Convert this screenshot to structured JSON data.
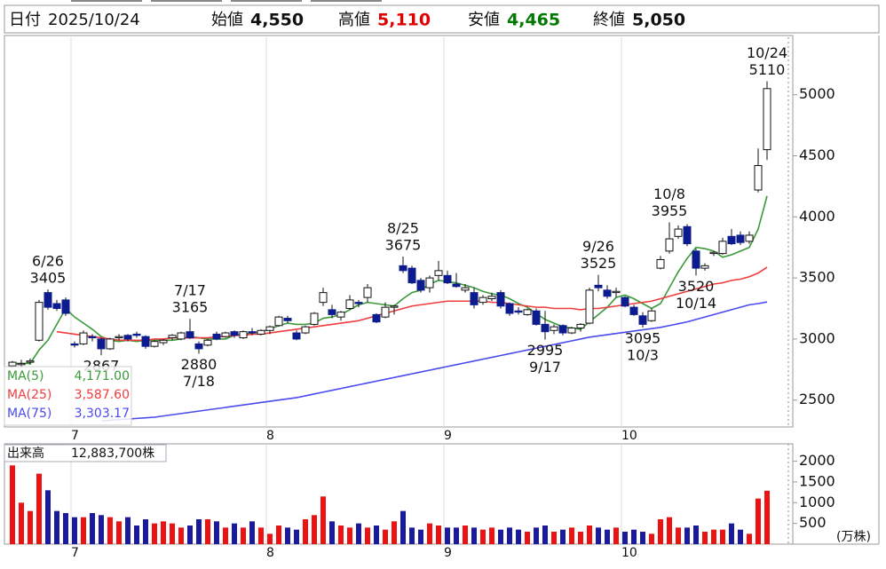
{
  "header": {
    "date_label": "日付",
    "date": "2025/10/24",
    "items": [
      {
        "label": "始値",
        "value": "4,550",
        "color": "#111111"
      },
      {
        "label": "高値",
        "value": "5,110",
        "color": "#e00000"
      },
      {
        "label": "安値",
        "value": "4,465",
        "color": "#007a00"
      },
      {
        "label": "終値",
        "value": "5,050",
        "color": "#111111"
      }
    ]
  },
  "chart_data": [
    {
      "type": "candlestick",
      "categories": [
        null,
        null,
        null,
        null,
        null,
        null,
        null,
        "7",
        null,
        null,
        null,
        null,
        null,
        null,
        null,
        null,
        null,
        null,
        null,
        null,
        null,
        null,
        null,
        null,
        null,
        null,
        null,
        null,
        null,
        "8",
        null,
        null,
        null,
        null,
        null,
        null,
        null,
        null,
        null,
        null,
        null,
        null,
        null,
        null,
        null,
        null,
        null,
        null,
        null,
        "9",
        null,
        null,
        null,
        null,
        null,
        null,
        null,
        null,
        null,
        null,
        null,
        null,
        null,
        null,
        null,
        null,
        null,
        null,
        null,
        "10",
        null,
        null,
        null,
        null,
        null,
        null,
        null,
        null,
        null,
        null,
        null,
        null,
        null,
        null,
        null,
        null
      ],
      "ohlc": [
        [
          2780,
          2820,
          2760,
          2810
        ],
        [
          2790,
          2830,
          2770,
          2800
        ],
        [
          2810,
          2840,
          2790,
          2820
        ],
        [
          2990,
          3320,
          2980,
          3300
        ],
        [
          3380,
          3405,
          3240,
          3260
        ],
        [
          3290,
          3320,
          3230,
          3250
        ],
        [
          3320,
          3340,
          3190,
          3210
        ],
        [
          2960,
          2980,
          2930,
          2950
        ],
        [
          2960,
          3070,
          2950,
          3050
        ],
        [
          3020,
          3040,
          2980,
          3010
        ],
        [
          3000,
          3010,
          2867,
          2920
        ],
        [
          2920,
          3010,
          2910,
          3000
        ],
        [
          3010,
          3040,
          2990,
          3020
        ],
        [
          3030,
          3040,
          2980,
          3000
        ],
        [
          3040,
          3060,
          3010,
          3030
        ],
        [
          3020,
          3030,
          2920,
          2940
        ],
        [
          2940,
          2990,
          2930,
          2980
        ],
        [
          2970,
          3000,
          2950,
          2990
        ],
        [
          3010,
          3040,
          2990,
          3030
        ],
        [
          3000,
          3060,
          2990,
          3050
        ],
        [
          3060,
          3165,
          3000,
          3010
        ],
        [
          2960,
          2980,
          2880,
          2920
        ],
        [
          2950,
          3000,
          2940,
          2990
        ],
        [
          3040,
          3060,
          2990,
          3000
        ],
        [
          3020,
          3060,
          3010,
          3050
        ],
        [
          3060,
          3070,
          3010,
          3030
        ],
        [
          3010,
          3070,
          3000,
          3060
        ],
        [
          3060,
          3090,
          3030,
          3050
        ],
        [
          3040,
          3080,
          3030,
          3070
        ],
        [
          3070,
          3110,
          3040,
          3100
        ],
        [
          3110,
          3190,
          3100,
          3180
        ],
        [
          3170,
          3190,
          3130,
          3150
        ],
        [
          3050,
          3070,
          2990,
          3000
        ],
        [
          3050,
          3110,
          3040,
          3100
        ],
        [
          3120,
          3220,
          3110,
          3210
        ],
        [
          3300,
          3420,
          3270,
          3380
        ],
        [
          3240,
          3280,
          3170,
          3200
        ],
        [
          3180,
          3230,
          3150,
          3220
        ],
        [
          3250,
          3360,
          3240,
          3320
        ],
        [
          3300,
          3320,
          3260,
          3290
        ],
        [
          3340,
          3450,
          3300,
          3420
        ],
        [
          3200,
          3210,
          3130,
          3140
        ],
        [
          3180,
          3300,
          3170,
          3260
        ],
        [
          3260,
          3280,
          3200,
          3270
        ],
        [
          3600,
          3675,
          3540,
          3560
        ],
        [
          3580,
          3600,
          3450,
          3460
        ],
        [
          3480,
          3500,
          3380,
          3400
        ],
        [
          3420,
          3520,
          3380,
          3500
        ],
        [
          3520,
          3640,
          3480,
          3560
        ],
        [
          3520,
          3560,
          3450,
          3460
        ],
        [
          3450,
          3540,
          3420,
          3430
        ],
        [
          3400,
          3450,
          3380,
          3420
        ],
        [
          3380,
          3420,
          3250,
          3280
        ],
        [
          3300,
          3360,
          3280,
          3340
        ],
        [
          3330,
          3380,
          3310,
          3350
        ],
        [
          3380,
          3400,
          3250,
          3270
        ],
        [
          3290,
          3300,
          3190,
          3210
        ],
        [
          3230,
          3260,
          3200,
          3220
        ],
        [
          3200,
          3250,
          3190,
          3240
        ],
        [
          3230,
          3250,
          3110,
          3120
        ],
        [
          3120,
          3230,
          2995,
          3060
        ],
        [
          3070,
          3120,
          3040,
          3100
        ],
        [
          3110,
          3120,
          3030,
          3050
        ],
        [
          3050,
          3100,
          3040,
          3090
        ],
        [
          3090,
          3130,
          3060,
          3120
        ],
        [
          3130,
          3420,
          3120,
          3400
        ],
        [
          3440,
          3525,
          3390,
          3420
        ],
        [
          3400,
          3440,
          3330,
          3350
        ],
        [
          3380,
          3420,
          3340,
          3390
        ],
        [
          3340,
          3350,
          3260,
          3270
        ],
        [
          3260,
          3280,
          3190,
          3200
        ],
        [
          3190,
          3220,
          3095,
          3120
        ],
        [
          3150,
          3250,
          3140,
          3230
        ],
        [
          3580,
          3680,
          3570,
          3650
        ],
        [
          3720,
          3955,
          3700,
          3820
        ],
        [
          3840,
          3930,
          3820,
          3900
        ],
        [
          3920,
          3940,
          3760,
          3780
        ],
        [
          3720,
          3740,
          3520,
          3580
        ],
        [
          3580,
          3620,
          3560,
          3600
        ],
        [
          3700,
          3720,
          3680,
          3710
        ],
        [
          3700,
          3830,
          3690,
          3800
        ],
        [
          3840,
          3900,
          3770,
          3780
        ],
        [
          3850,
          3880,
          3770,
          3790
        ],
        [
          3800,
          3880,
          3780,
          3850
        ],
        [
          4220,
          4560,
          4200,
          4420
        ],
        [
          4550,
          5110,
          4465,
          5050
        ]
      ],
      "up_color": "#ffffff",
      "down_color": "#0c1c8e",
      "series": [
        {
          "name": "MA(5)",
          "color": "#3a9a3a",
          "legend_value": "4,171.00",
          "values": [
            2800,
            2800,
            2800,
            2910,
            2990,
            3120,
            3250,
            3180,
            3130,
            3080,
            3020,
            2990,
            2980,
            2990,
            2980,
            2990,
            2990,
            2990,
            2990,
            3000,
            3020,
            3010,
            3000,
            3000,
            3000,
            3030,
            3040,
            3050,
            3060,
            3080,
            3110,
            3130,
            3120,
            3120,
            3130,
            3170,
            3180,
            3200,
            3240,
            3280,
            3300,
            3290,
            3280,
            3270,
            3330,
            3380,
            3400,
            3450,
            3480,
            3470,
            3460,
            3440,
            3420,
            3390,
            3370,
            3360,
            3330,
            3290,
            3260,
            3210,
            3160,
            3130,
            3100,
            3090,
            3080,
            3140,
            3200,
            3260,
            3340,
            3360,
            3330,
            3290,
            3250,
            3290,
            3420,
            3550,
            3660,
            3750,
            3740,
            3720,
            3670,
            3690,
            3720,
            3750,
            3900,
            4171
          ]
        },
        {
          "name": "MA(25)",
          "color": "#f03c3c",
          "legend_value": "3,587.60",
          "values": [
            null,
            null,
            null,
            null,
            null,
            3060,
            3050,
            3040,
            3030,
            3020,
            3010,
            3000,
            2990,
            2990,
            2990,
            2990,
            3000,
            3000,
            3010,
            3010,
            3010,
            3010,
            3010,
            3020,
            3020,
            3030,
            3030,
            3040,
            3040,
            3050,
            3060,
            3070,
            3080,
            3090,
            3100,
            3110,
            3120,
            3130,
            3140,
            3150,
            3170,
            3190,
            3210,
            3230,
            3250,
            3270,
            3280,
            3290,
            3300,
            3310,
            3310,
            3310,
            3310,
            3310,
            3300,
            3300,
            3290,
            3280,
            3270,
            3260,
            3260,
            3250,
            3250,
            3250,
            3240,
            3250,
            3250,
            3260,
            3270,
            3280,
            3290,
            3300,
            3310,
            3330,
            3350,
            3370,
            3390,
            3410,
            3430,
            3450,
            3460,
            3480,
            3490,
            3510,
            3540,
            3587.6
          ]
        },
        {
          "name": "MA(75)",
          "color": "#4a4aee",
          "legend_value": "3,303.17",
          "values": [
            null,
            null,
            null,
            null,
            null,
            null,
            null,
            null,
            null,
            null,
            2330,
            2335,
            2340,
            2345,
            2350,
            2355,
            2360,
            2370,
            2380,
            2390,
            2400,
            2410,
            2420,
            2430,
            2440,
            2450,
            2460,
            2470,
            2480,
            2490,
            2500,
            2510,
            2520,
            2535,
            2550,
            2565,
            2580,
            2595,
            2610,
            2625,
            2640,
            2655,
            2670,
            2685,
            2700,
            2715,
            2730,
            2745,
            2760,
            2775,
            2790,
            2805,
            2820,
            2835,
            2850,
            2865,
            2880,
            2895,
            2910,
            2925,
            2940,
            2955,
            2970,
            2985,
            3000,
            3015,
            3025,
            3035,
            3045,
            3055,
            3065,
            3075,
            3085,
            3095,
            3110,
            3125,
            3140,
            3160,
            3180,
            3200,
            3220,
            3240,
            3260,
            3280,
            3290,
            3303.17
          ]
        }
      ],
      "annotations": [
        {
          "date": "6/26",
          "value": 3405,
          "kind": "high"
        },
        {
          "value": 2867,
          "kind": "low"
        },
        {
          "date": "7/17",
          "value": 3165,
          "kind": "high"
        },
        {
          "date": "7/18",
          "value": 2880,
          "kind": "low"
        },
        {
          "date": "8/25",
          "value": 3675,
          "kind": "high"
        },
        {
          "date": "9/17",
          "value": 2995,
          "kind": "low"
        },
        {
          "date": "9/26",
          "value": 3525,
          "kind": "high"
        },
        {
          "date": "10/3",
          "value": 3095,
          "kind": "low"
        },
        {
          "date": "10/8",
          "value": 3955,
          "kind": "high"
        },
        {
          "date": "10/14",
          "value": 3520,
          "kind": "low"
        },
        {
          "date": "10/24",
          "value": 5110,
          "kind": "high"
        }
      ],
      "ylim": [
        2280,
        5470
      ],
      "yticks": [
        2500,
        3000,
        3500,
        4000,
        4500,
        5000
      ],
      "grid": true
    },
    {
      "type": "bar",
      "title": "出来高",
      "legend_value": "12,883,700株",
      "unit": "(万株)",
      "values": [
        1900,
        1000,
        800,
        1700,
        1300,
        800,
        750,
        650,
        650,
        750,
        700,
        650,
        550,
        650,
        450,
        600,
        500,
        550,
        500,
        400,
        450,
        600,
        600,
        550,
        400,
        500,
        400,
        550,
        400,
        250,
        450,
        400,
        350,
        600,
        700,
        1150,
        550,
        450,
        400,
        500,
        400,
        450,
        350,
        550,
        800,
        400,
        350,
        500,
        450,
        400,
        400,
        450,
        400,
        350,
        400,
        350,
        400,
        350,
        300,
        400,
        450,
        300,
        350,
        400,
        300,
        450,
        400,
        350,
        400,
        300,
        350,
        300,
        250,
        600,
        650,
        400,
        400,
        450,
        300,
        350,
        350,
        500,
        350,
        250,
        1100,
        1288.37
      ],
      "up_color": "#ee1111",
      "down_color": "#1a1aa0",
      "ylim": [
        0,
        2420
      ],
      "yticks": [
        500,
        1000,
        1500,
        2000
      ]
    }
  ]
}
